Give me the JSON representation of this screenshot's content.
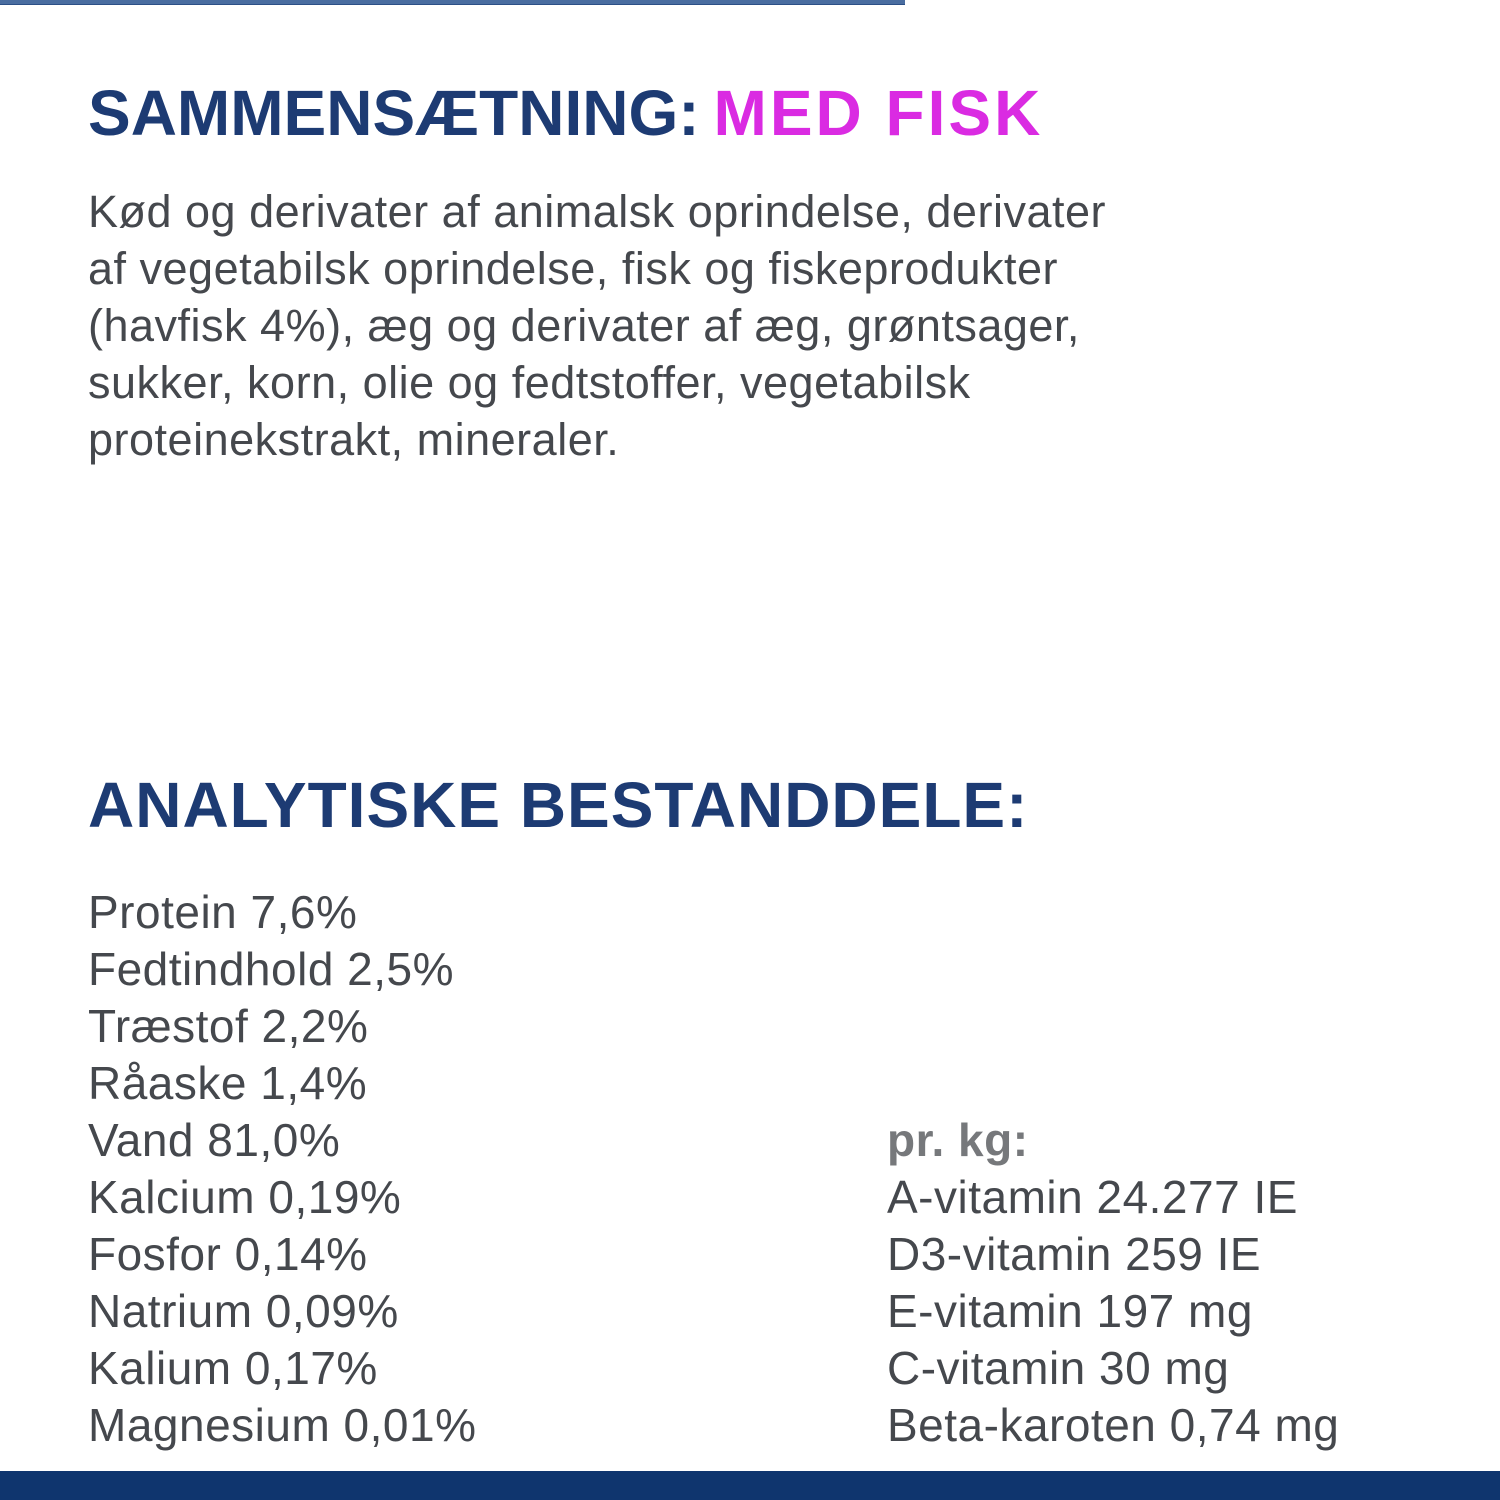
{
  "composition": {
    "heading_label": "SAMMENSÆTNING:",
    "heading_variant": "MED FISK",
    "ingredients_lines": [
      "Kød og derivater af animalsk oprindelse, derivater",
      "af vegetabilsk oprindelse, fisk og fiskeprodukter",
      "(havfisk 4%), æg og derivater af æg, grøntsager,",
      "sukker, korn, olie og fedtstoffer, vegetabilsk",
      "proteinekstrakt, mineraler."
    ],
    "ingredients_text": "Kød og derivater af animalsk oprindelse, derivater af vegetabilsk oprindelse, fisk og fiskeprodukter (havfisk 4%), æg og derivater af æg, grøntsager, sukker, korn, olie og fedtstoffer, vegetabilsk proteinekstrakt, mineraler."
  },
  "analysis": {
    "heading": "ANALYTISKE BESTANDDELE:",
    "constituents": [
      "Protein 7,6%",
      "Fedtindhold 2,5%",
      "Træstof 2,2%",
      "Råaske 1,4%",
      "Vand 81,0%",
      "Kalcium 0,19%",
      "Fosfor 0,14%",
      "Natrium 0,09%",
      "Kalium 0,17%",
      "Magnesium 0,01%"
    ],
    "per_kg": {
      "header": "pr. kg:",
      "items": [
        "A-vitamin 24.277 IE",
        "D3-vitamin 259 IE",
        "E-vitamin 197 mg",
        "C-vitamin 30 mg",
        "Beta-karoten 0,74 mg"
      ]
    }
  },
  "colors": {
    "navy": "#1d3b73",
    "magenta": "#da2be2",
    "body_text": "#45484d",
    "muted_gray": "#76787b",
    "top_rule_blue": "#4a6da0",
    "bottom_bar_navy": "#0f356e"
  }
}
